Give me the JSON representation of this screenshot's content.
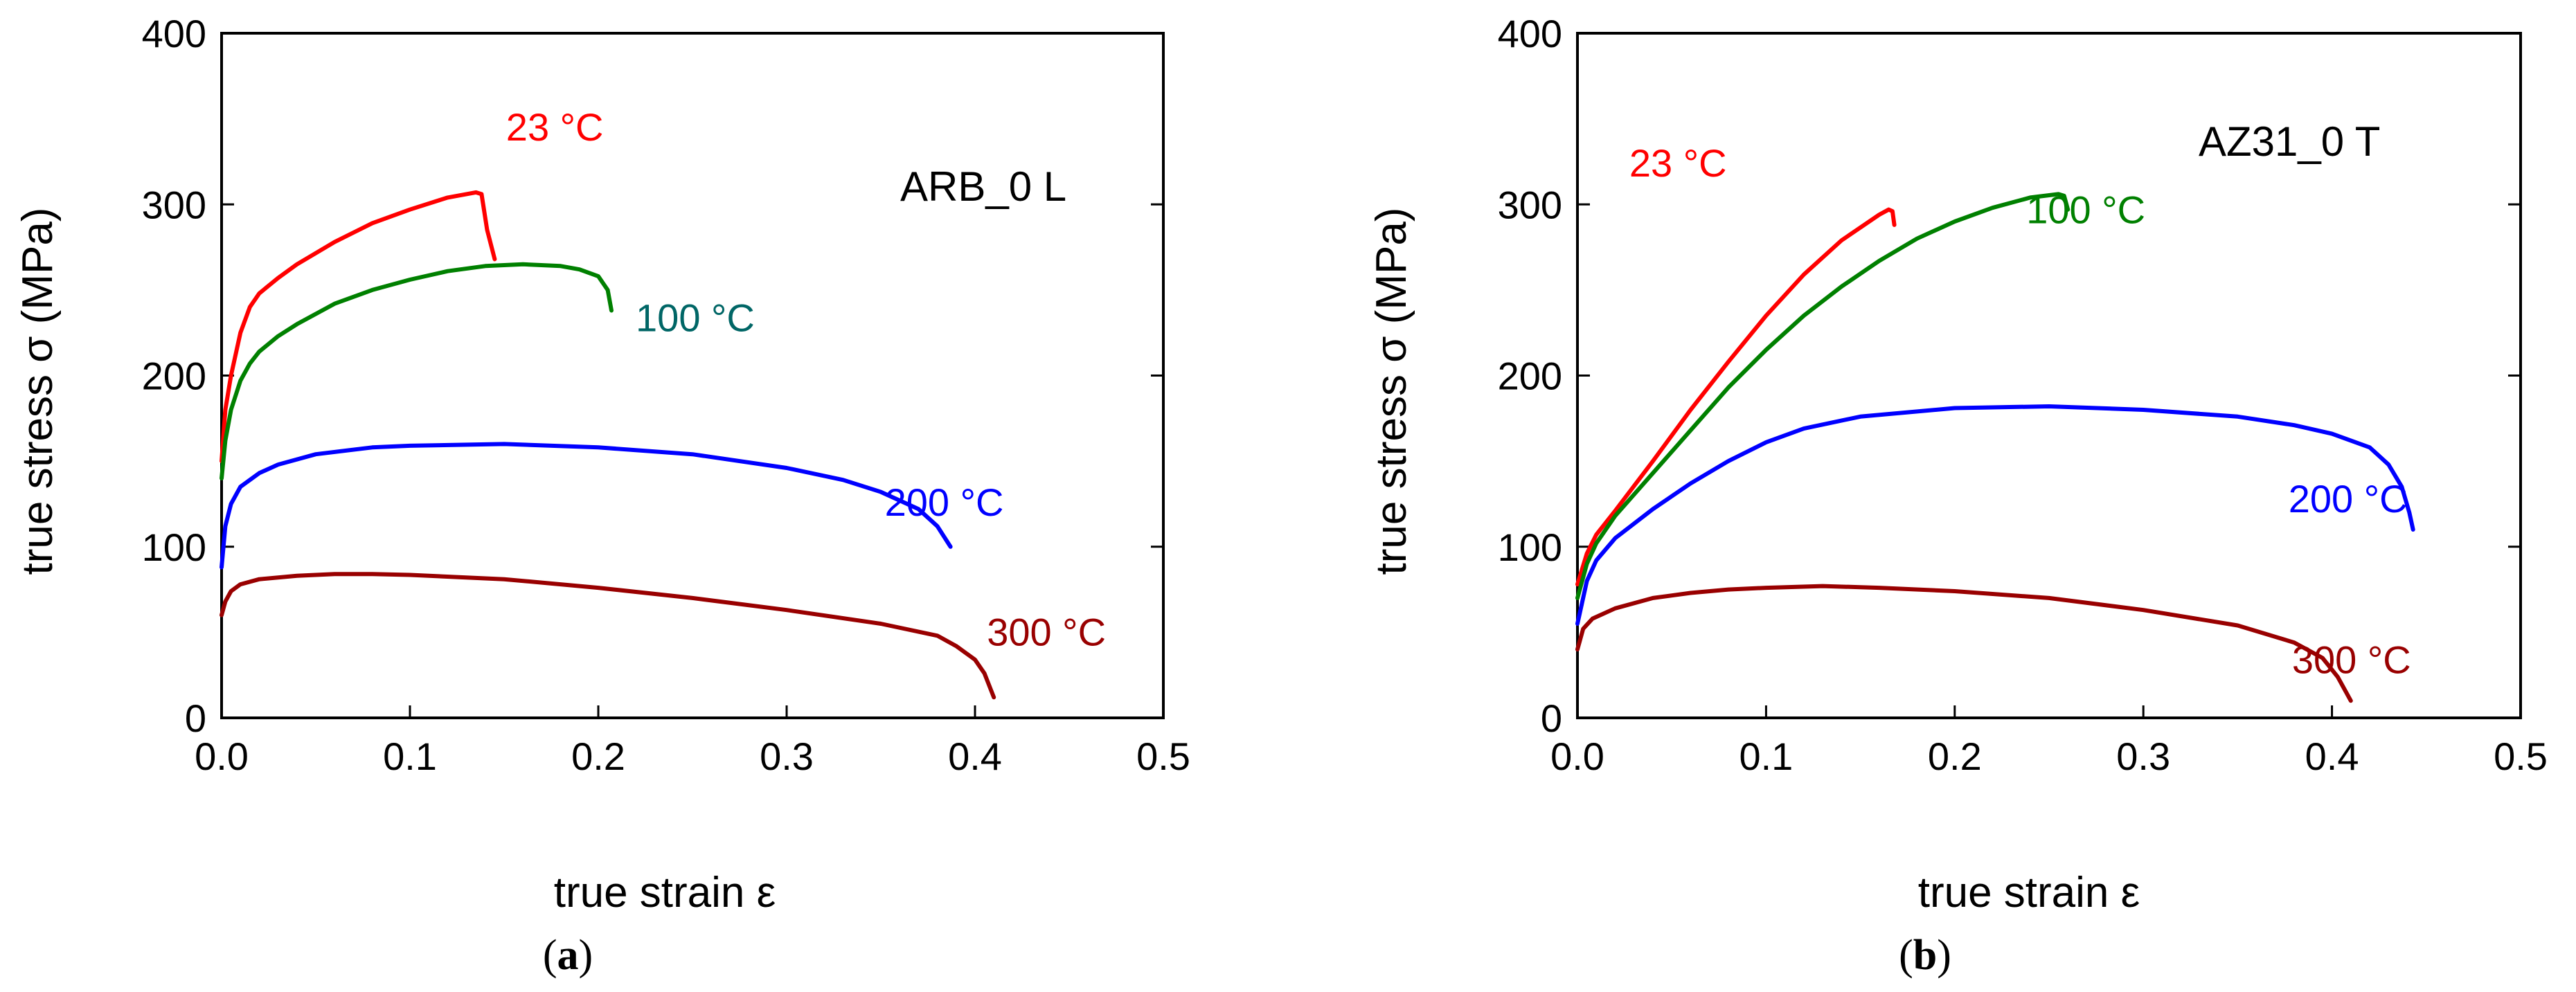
{
  "chart_data": [
    {
      "type": "line",
      "panel": "a",
      "caption": {
        "open": "(",
        "letter": "a",
        "close": ")"
      },
      "label": "ARB_0 L",
      "xlabel": "true strain ε",
      "ylabel": "true stress σ (MPa)",
      "xlim": [
        0,
        0.5
      ],
      "ylim": [
        0,
        400
      ],
      "xticks": [
        "0.0",
        "0.1",
        "0.2",
        "0.3",
        "0.4",
        "0.5"
      ],
      "yticks": [
        "0",
        "100",
        "200",
        "300",
        "400"
      ],
      "grid": false,
      "series": [
        {
          "name": "23 °C",
          "color": "#ff0000",
          "label_color": "#ff0000",
          "points": [
            [
              0,
              150
            ],
            [
              0.002,
              180
            ],
            [
              0.005,
              200
            ],
            [
              0.01,
              225
            ],
            [
              0.015,
              240
            ],
            [
              0.02,
              248
            ],
            [
              0.03,
              257
            ],
            [
              0.04,
              265
            ],
            [
              0.06,
              278
            ],
            [
              0.08,
              289
            ],
            [
              0.1,
              297
            ],
            [
              0.12,
              304
            ],
            [
              0.135,
              307
            ],
            [
              0.138,
              306
            ],
            [
              0.141,
              285
            ],
            [
              0.145,
              268
            ]
          ]
        },
        {
          "name": "100 °C",
          "color": "#008000",
          "label_color": "#006666",
          "points": [
            [
              0,
              140
            ],
            [
              0.002,
              162
            ],
            [
              0.005,
              180
            ],
            [
              0.01,
              197
            ],
            [
              0.015,
              207
            ],
            [
              0.02,
              214
            ],
            [
              0.03,
              223
            ],
            [
              0.04,
              230
            ],
            [
              0.06,
              242
            ],
            [
              0.08,
              250
            ],
            [
              0.1,
              256
            ],
            [
              0.12,
              261
            ],
            [
              0.14,
              264
            ],
            [
              0.16,
              265
            ],
            [
              0.18,
              264
            ],
            [
              0.19,
              262
            ],
            [
              0.2,
              258
            ],
            [
              0.205,
              250
            ],
            [
              0.207,
              238
            ]
          ]
        },
        {
          "name": "200 °C",
          "color": "#0000ff",
          "label_color": "#0000ff",
          "points": [
            [
              0,
              88
            ],
            [
              0.002,
              112
            ],
            [
              0.005,
              125
            ],
            [
              0.01,
              135
            ],
            [
              0.02,
              143
            ],
            [
              0.03,
              148
            ],
            [
              0.05,
              154
            ],
            [
              0.08,
              158
            ],
            [
              0.1,
              159
            ],
            [
              0.15,
              160
            ],
            [
              0.2,
              158
            ],
            [
              0.25,
              154
            ],
            [
              0.3,
              146
            ],
            [
              0.33,
              139
            ],
            [
              0.35,
              132
            ],
            [
              0.37,
              122
            ],
            [
              0.38,
              112
            ],
            [
              0.387,
              100
            ]
          ]
        },
        {
          "name": "300 °C",
          "color": "#990000",
          "label_color": "#990000",
          "points": [
            [
              0,
              60
            ],
            [
              0.002,
              68
            ],
            [
              0.005,
              74
            ],
            [
              0.01,
              78
            ],
            [
              0.02,
              81
            ],
            [
              0.04,
              83
            ],
            [
              0.06,
              84
            ],
            [
              0.08,
              84
            ],
            [
              0.1,
              83.5
            ],
            [
              0.15,
              81
            ],
            [
              0.2,
              76
            ],
            [
              0.25,
              70
            ],
            [
              0.3,
              63
            ],
            [
              0.35,
              55
            ],
            [
              0.38,
              48
            ],
            [
              0.39,
              42
            ],
            [
              0.4,
              34
            ],
            [
              0.405,
              26
            ],
            [
              0.41,
              12
            ]
          ]
        }
      ]
    },
    {
      "type": "line",
      "panel": "b",
      "caption": {
        "open": "(",
        "letter": "b",
        "close": ")"
      },
      "label": "AZ31_0 T",
      "xlabel": "true strain ε",
      "ylabel": "true stress σ (MPa)",
      "xlim": [
        0,
        0.5
      ],
      "ylim": [
        0,
        400
      ],
      "xticks": [
        "0.0",
        "0.1",
        "0.2",
        "0.3",
        "0.4",
        "0.5"
      ],
      "yticks": [
        "0",
        "100",
        "200",
        "300",
        "400"
      ],
      "grid": false,
      "series": [
        {
          "name": "23 °C",
          "color": "#ff0000",
          "label_color": "#ff0000",
          "points": [
            [
              0,
              78
            ],
            [
              0.005,
              96
            ],
            [
              0.01,
              107
            ],
            [
              0.02,
              121
            ],
            [
              0.04,
              150
            ],
            [
              0.06,
              180
            ],
            [
              0.08,
              208
            ],
            [
              0.1,
              235
            ],
            [
              0.12,
              259
            ],
            [
              0.14,
              279
            ],
            [
              0.16,
              294
            ],
            [
              0.165,
              297
            ],
            [
              0.167,
              296
            ],
            [
              0.168,
              288
            ]
          ]
        },
        {
          "name": "100 °C",
          "color": "#008000",
          "label_color": "#008000",
          "points": [
            [
              0,
              70
            ],
            [
              0.005,
              90
            ],
            [
              0.01,
              102
            ],
            [
              0.02,
              118
            ],
            [
              0.04,
              143
            ],
            [
              0.06,
              168
            ],
            [
              0.08,
              193
            ],
            [
              0.1,
              215
            ],
            [
              0.12,
              235
            ],
            [
              0.14,
              252
            ],
            [
              0.16,
              267
            ],
            [
              0.18,
              280
            ],
            [
              0.2,
              290
            ],
            [
              0.22,
              298
            ],
            [
              0.24,
              304
            ],
            [
              0.255,
              306
            ],
            [
              0.258,
              305
            ],
            [
              0.26,
              297
            ]
          ]
        },
        {
          "name": "200 °C",
          "color": "#0000ff",
          "label_color": "#0000ff",
          "points": [
            [
              0,
              55
            ],
            [
              0.005,
              80
            ],
            [
              0.01,
              92
            ],
            [
              0.02,
              105
            ],
            [
              0.04,
              122
            ],
            [
              0.06,
              137
            ],
            [
              0.08,
              150
            ],
            [
              0.1,
              161
            ],
            [
              0.12,
              169
            ],
            [
              0.15,
              176
            ],
            [
              0.2,
              181
            ],
            [
              0.25,
              182
            ],
            [
              0.3,
              180
            ],
            [
              0.35,
              176
            ],
            [
              0.38,
              171
            ],
            [
              0.4,
              166
            ],
            [
              0.42,
              158
            ],
            [
              0.43,
              148
            ],
            [
              0.437,
              135
            ],
            [
              0.441,
              120
            ],
            [
              0.443,
              110
            ]
          ]
        },
        {
          "name": "300 °C",
          "color": "#990000",
          "label_color": "#990000",
          "points": [
            [
              0,
              40
            ],
            [
              0.003,
              52
            ],
            [
              0.008,
              58
            ],
            [
              0.02,
              64
            ],
            [
              0.04,
              70
            ],
            [
              0.06,
              73
            ],
            [
              0.08,
              75
            ],
            [
              0.1,
              76
            ],
            [
              0.13,
              77
            ],
            [
              0.16,
              76
            ],
            [
              0.2,
              74
            ],
            [
              0.25,
              70
            ],
            [
              0.3,
              63
            ],
            [
              0.35,
              54
            ],
            [
              0.38,
              44
            ],
            [
              0.395,
              35
            ],
            [
              0.403,
              24
            ],
            [
              0.408,
              14
            ],
            [
              0.41,
              10
            ]
          ]
        }
      ]
    }
  ]
}
